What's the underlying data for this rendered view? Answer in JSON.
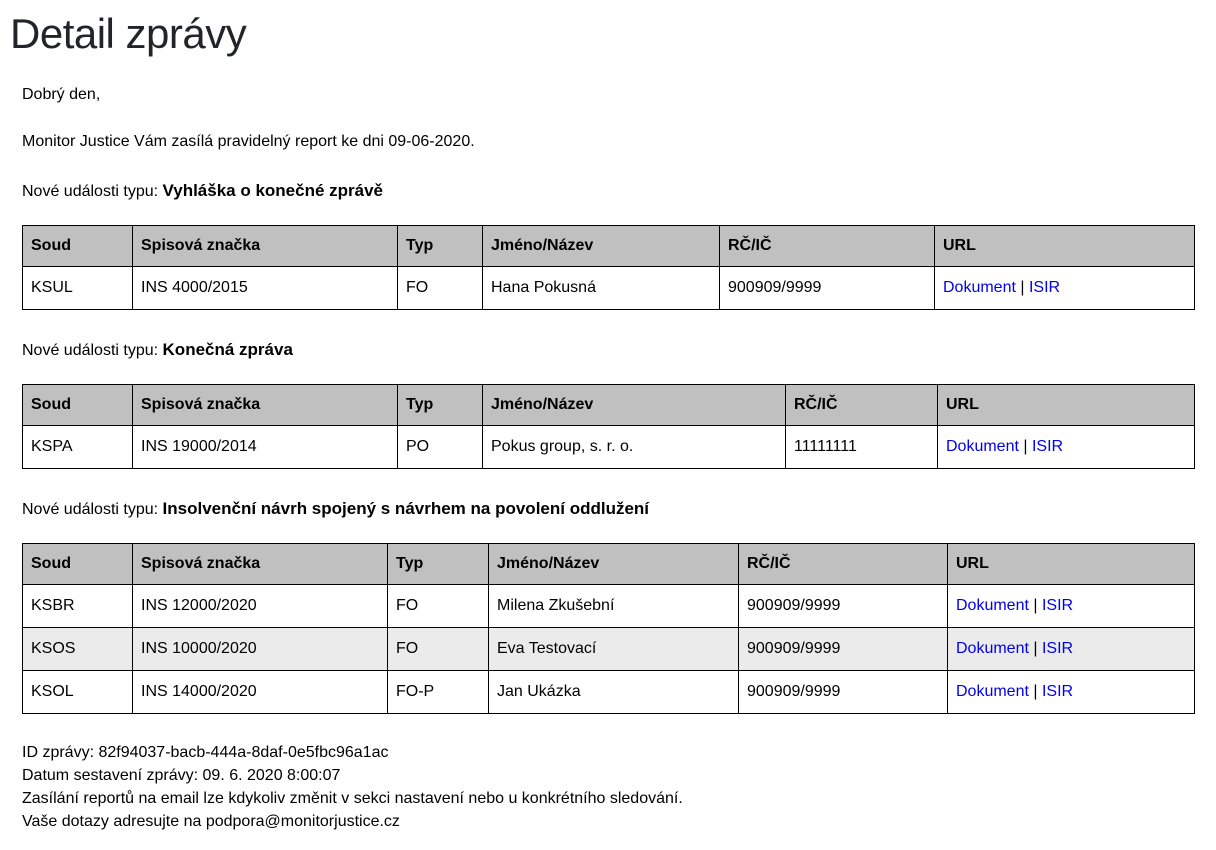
{
  "page": {
    "title": "Detail zprávy",
    "greeting": "Dobrý den,",
    "intro": "Monitor Justice Vám zasílá pravidelný report ke dni 09-06-2020."
  },
  "colors": {
    "link_blue": "#0000ee",
    "table_header_bg": "#c0c0c0",
    "striped_row_bg": "#ebebeb",
    "border": "#000000"
  },
  "table_labels": {
    "link_separator": " | "
  },
  "sections": [
    {
      "label_prefix": "Nové události typu:",
      "event_type": "Vyhláška o konečné zprávě",
      "columns": [
        "Soud",
        "Spisová značka",
        "Typ",
        "Jméno/Název",
        "RČ/IČ",
        "URL"
      ],
      "rows": [
        {
          "cells": [
            "KSUL",
            "INS 4000/2015",
            "FO",
            "Hana Pokusná",
            "900909/9999"
          ],
          "links": [
            "Dokument",
            "ISIR"
          ]
        }
      ]
    },
    {
      "label_prefix": "Nové události typu:",
      "event_type": "Konečná zpráva",
      "columns": [
        "Soud",
        "Spisová značka",
        "Typ",
        "Jméno/Název",
        "RČ/IČ",
        "URL"
      ],
      "rows": [
        {
          "cells": [
            "KSPA",
            "INS 19000/2014",
            "PO",
            "Pokus group, s. r. o.",
            "11111111"
          ],
          "links": [
            "Dokument",
            "ISIR"
          ]
        }
      ]
    },
    {
      "label_prefix": "Nové události typu:",
      "event_type": "Insolvenční návrh spojený s návrhem na povolení oddlužení",
      "columns": [
        "Soud",
        "Spisová značka",
        "Typ",
        "Jméno/Název",
        "RČ/IČ",
        "URL"
      ],
      "rows": [
        {
          "cells": [
            "KSBR",
            "INS 12000/2020",
            "FO",
            "Milena Zkušební",
            "900909/9999"
          ],
          "links": [
            "Dokument",
            "ISIR"
          ]
        },
        {
          "cells": [
            "KSOS",
            "INS 10000/2020",
            "FO",
            "Eva Testovací",
            "900909/9999"
          ],
          "links": [
            "Dokument",
            "ISIR"
          ]
        },
        {
          "cells": [
            "KSOL",
            "INS 14000/2020",
            "FO-P",
            "Jan Ukázka",
            "900909/9999"
          ],
          "links": [
            "Dokument",
            "ISIR"
          ]
        }
      ]
    }
  ],
  "footer": {
    "lines": [
      "ID zprávy: 82f94037-bacb-444a-8daf-0e5fbc96a1ac",
      "Datum sestavení zprávy: 09. 6. 2020 8:00:07",
      "Zasílání reportů na email lze kdykoliv změnit v sekci nastavení nebo u konkrétního sledování.",
      "Vaše dotazy adresujte na podpora@monitorjustice.cz"
    ]
  }
}
